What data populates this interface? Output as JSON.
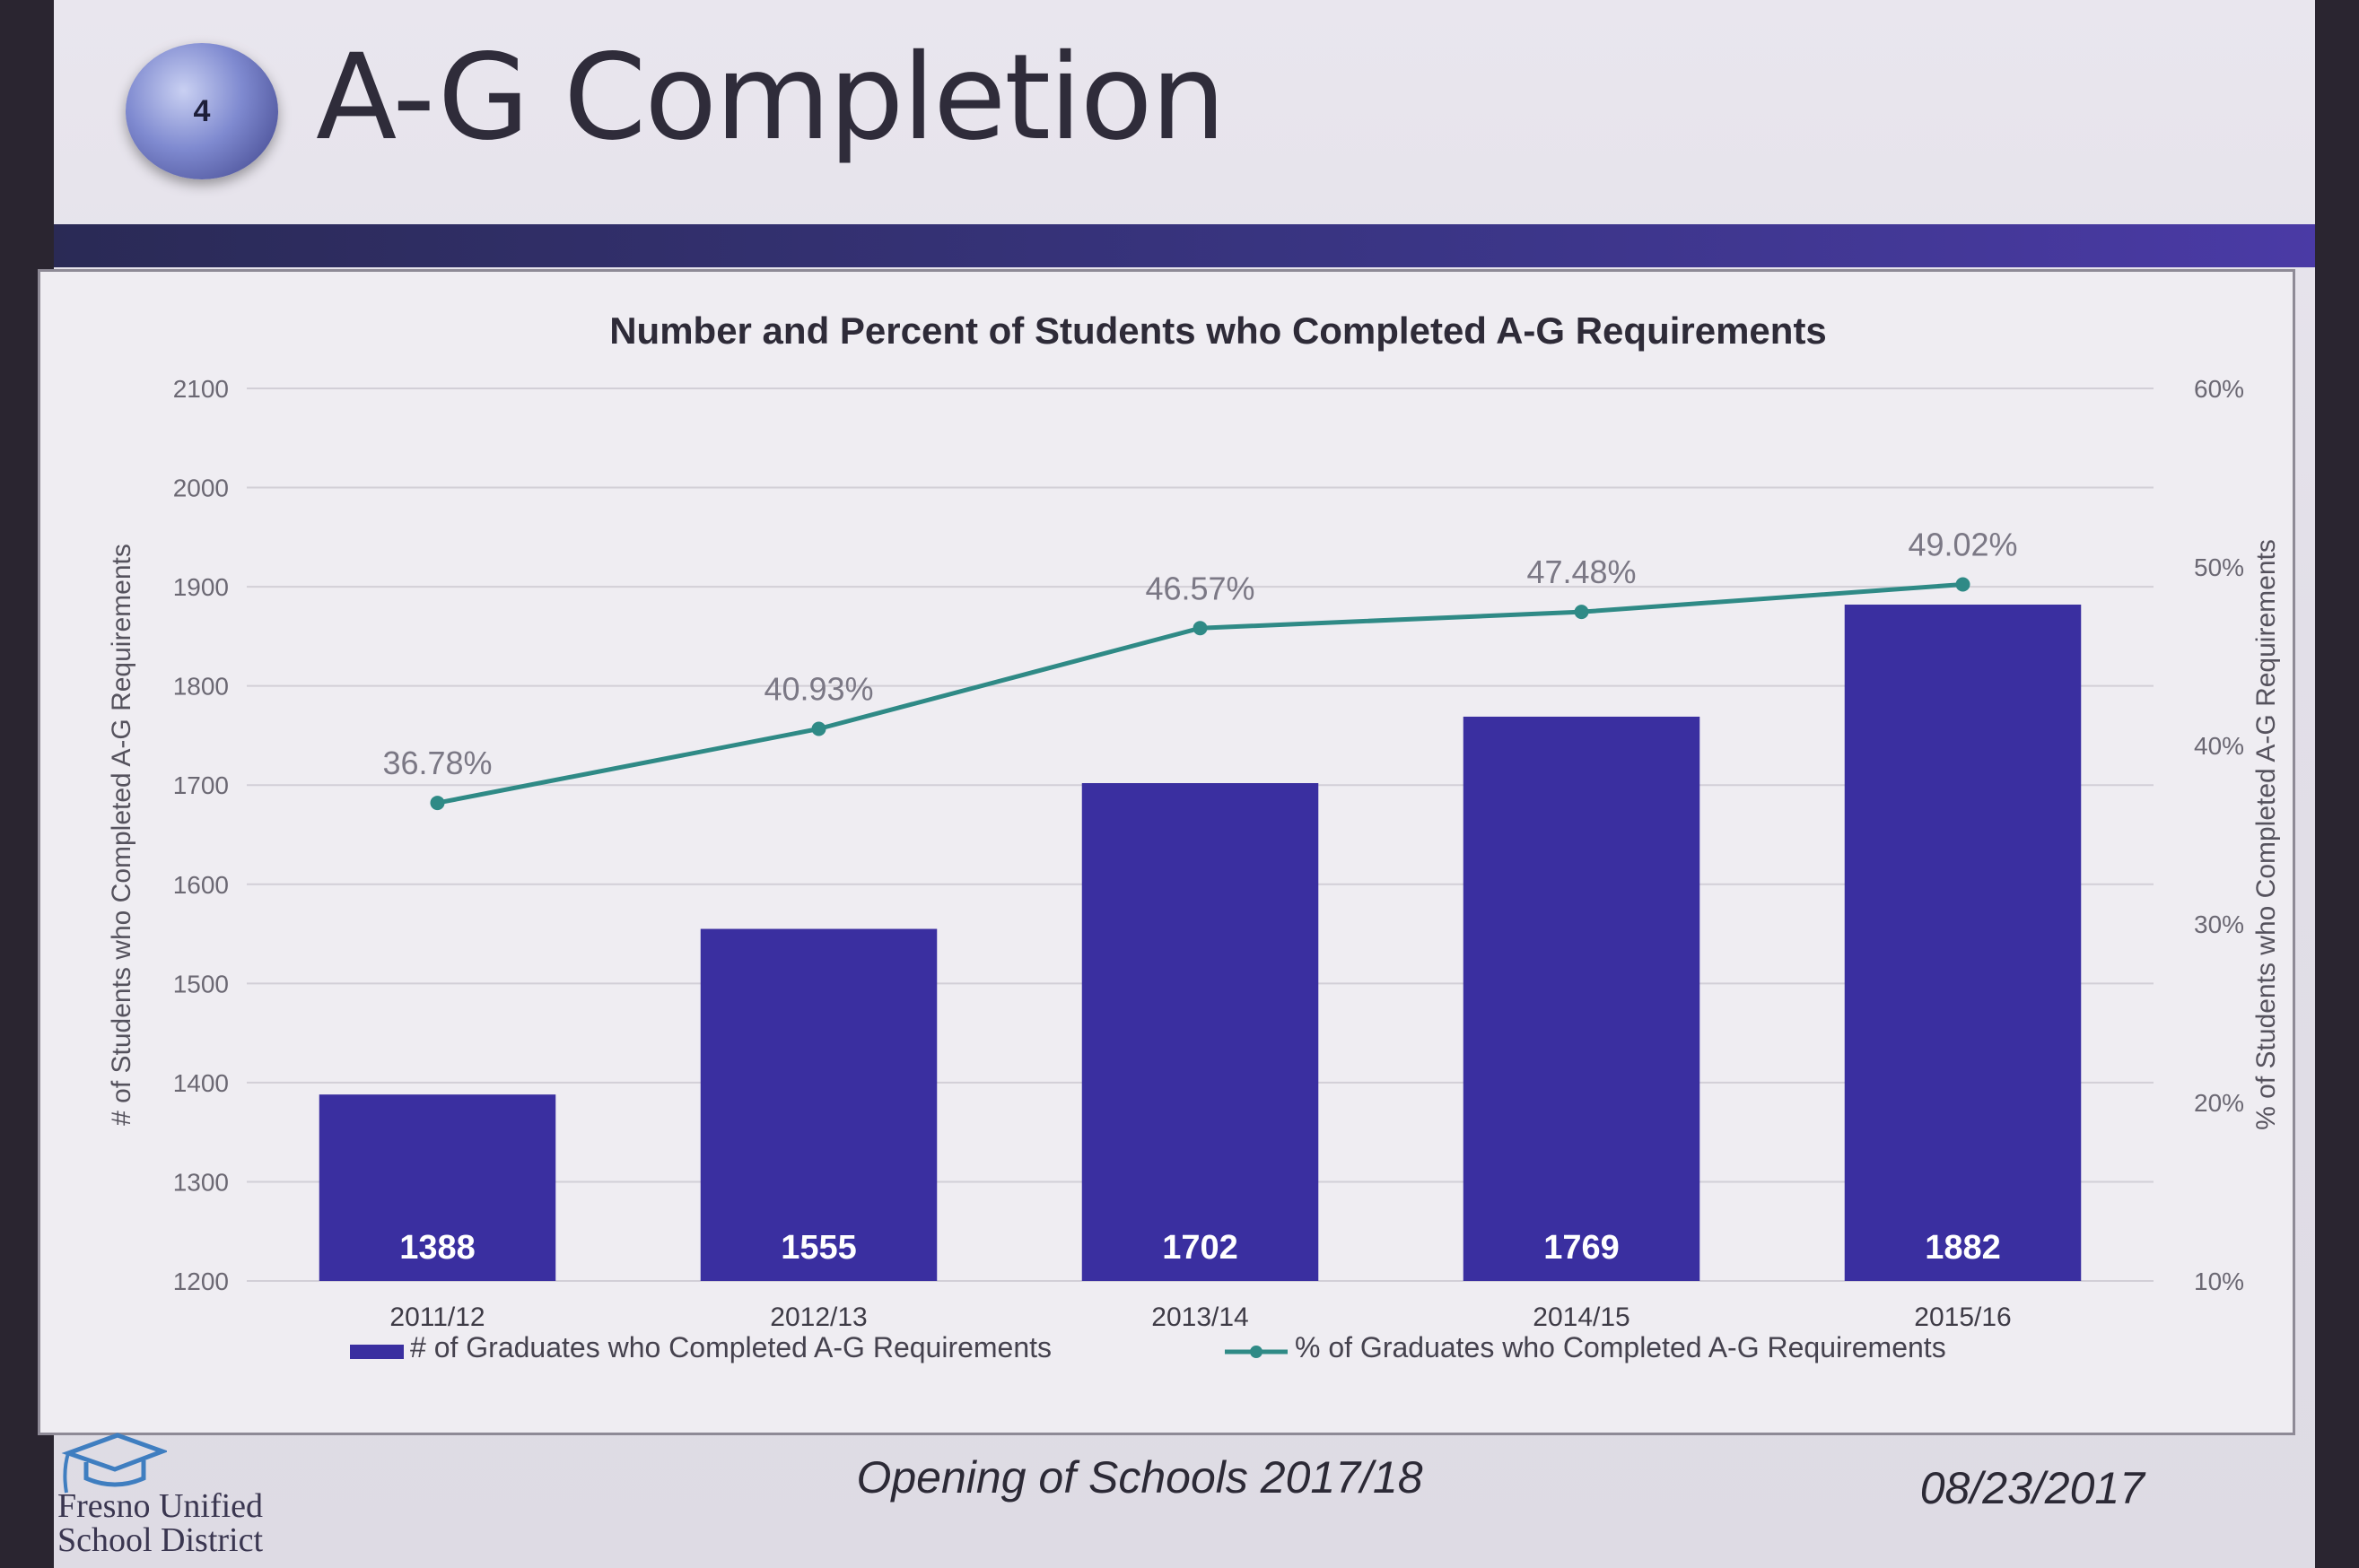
{
  "slide": {
    "number": "4",
    "title": "A-G Completion"
  },
  "footer": {
    "event": "Opening of Schools 2017/18",
    "date": "08/23/2017",
    "logo_line1": "Fresno Unified",
    "logo_line2": "School District",
    "logo_icon": "graduation-cap-icon"
  },
  "colors": {
    "bar": "#3a2fa0",
    "line": "#2f8a86",
    "band": "#3a3585"
  },
  "chart_data": {
    "type": "bar",
    "title": "Number and Percent of Students who Completed A-G Requirements",
    "categories": [
      "2011/12",
      "2012/13",
      "2013/14",
      "2014/15",
      "2015/16"
    ],
    "series": [
      {
        "name": "# of Graduates who Completed A-G Requirements",
        "type": "bar",
        "axis": "left",
        "values": [
          1388,
          1555,
          1702,
          1769,
          1882
        ],
        "labels": [
          "1388",
          "1555",
          "1702",
          "1769",
          "1882"
        ]
      },
      {
        "name": "% of Graduates who Completed A-G Requirements",
        "type": "line",
        "axis": "right",
        "values": [
          36.78,
          40.93,
          46.57,
          47.48,
          49.02
        ],
        "labels": [
          "36.78%",
          "40.93%",
          "46.57%",
          "47.48%",
          "49.02%"
        ]
      }
    ],
    "ylabel": "# of Students who Completed A-G Requirements",
    "ylim": [
      1200,
      2100
    ],
    "yticks": [
      "1200",
      "1300",
      "1400",
      "1500",
      "1600",
      "1700",
      "1800",
      "1900",
      "2000",
      "2100"
    ],
    "y2label": "% of Students who Completed A-G Requirements",
    "y2lim": [
      10,
      60
    ],
    "y2ticks": [
      "10%",
      "20%",
      "30%",
      "40%",
      "50%",
      "60%"
    ],
    "grid": true,
    "legend": "bottom"
  }
}
